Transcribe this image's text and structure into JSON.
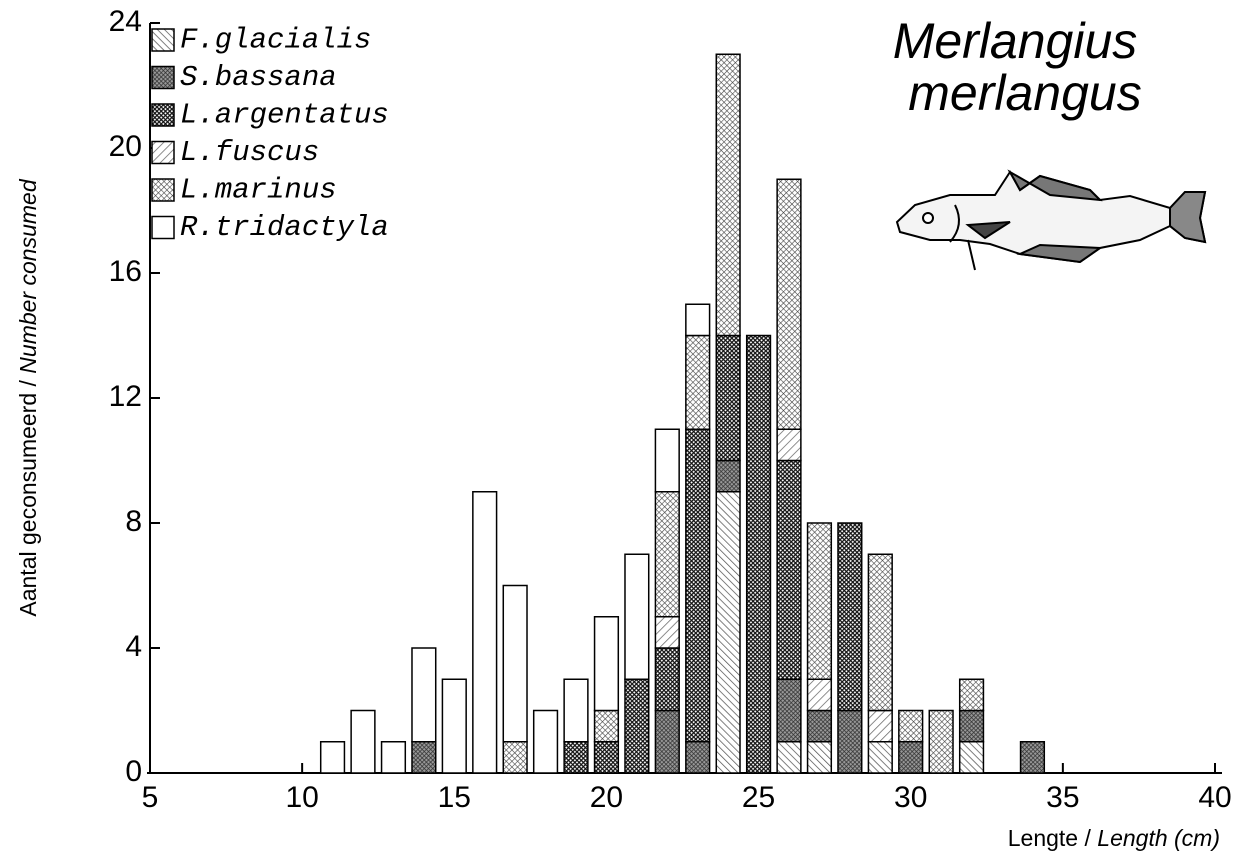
{
  "chart_data": {
    "type": "stacked-bar",
    "title": [
      "Merlangius",
      "merlangus"
    ],
    "ylabel": [
      "Aantal geconsumeerd /",
      "Number consumed"
    ],
    "xlabel": [
      "Lengte /",
      "Length (cm)"
    ],
    "x": [
      11,
      12,
      13,
      14,
      15,
      16,
      17,
      18,
      19,
      20,
      21,
      22,
      23,
      24,
      25,
      26,
      27,
      28,
      29,
      30,
      31,
      32,
      34
    ],
    "series": [
      {
        "name": "F.glacialis",
        "color": "#555555",
        "values": [
          0,
          0,
          0,
          0,
          0,
          0,
          0,
          0,
          0,
          0,
          0,
          0,
          0,
          9,
          0,
          1,
          1,
          0,
          1,
          0,
          0,
          1,
          0
        ]
      },
      {
        "name": "S.bassana",
        "color": "#333333",
        "values": [
          0,
          0,
          0,
          1,
          0,
          0,
          0,
          0,
          0,
          0,
          0,
          2,
          1,
          1,
          0,
          2,
          1,
          2,
          0,
          1,
          0,
          1,
          1
        ]
      },
      {
        "name": "L.argentatus",
        "color": "#111111",
        "values": [
          0,
          0,
          0,
          0,
          0,
          0,
          0,
          0,
          1,
          1,
          3,
          2,
          10,
          4,
          14,
          7,
          0,
          6,
          0,
          0,
          0,
          0,
          0
        ]
      },
      {
        "name": "L.fuscus",
        "color": "#666666",
        "values": [
          0,
          0,
          0,
          0,
          0,
          0,
          0,
          0,
          0,
          0,
          0,
          1,
          0,
          0,
          0,
          1,
          1,
          0,
          1,
          0,
          0,
          0,
          0
        ]
      },
      {
        "name": "L.marinus",
        "color": "#444444",
        "values": [
          0,
          0,
          0,
          0,
          0,
          0,
          1,
          0,
          0,
          1,
          0,
          4,
          3,
          9,
          0,
          8,
          5,
          0,
          5,
          1,
          2,
          1,
          0
        ]
      },
      {
        "name": "R.tridactyla",
        "color": "#ffffff",
        "values": [
          1,
          2,
          1,
          3,
          3,
          9,
          5,
          2,
          2,
          3,
          4,
          2,
          1,
          0,
          0,
          0,
          0,
          0,
          0,
          0,
          0,
          0,
          0
        ]
      }
    ],
    "xlim": [
      5,
      40
    ],
    "xticks": [
      5,
      10,
      15,
      20,
      25,
      30,
      35,
      40
    ],
    "ylim": [
      0,
      24
    ],
    "yticks": [
      0,
      4,
      8,
      12,
      16,
      20,
      24
    ]
  }
}
